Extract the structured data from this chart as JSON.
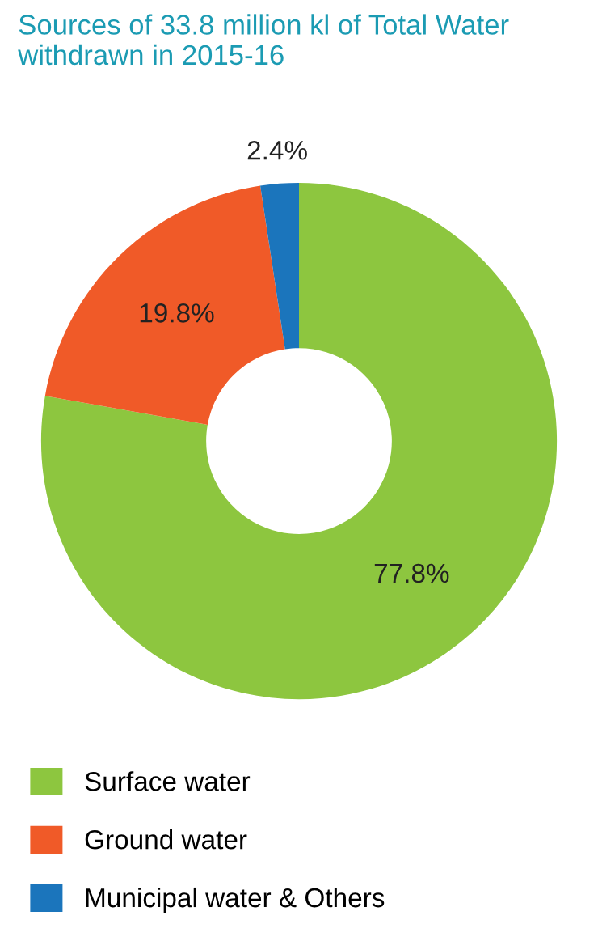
{
  "chart_data": {
    "type": "donut",
    "title": "Sources of 33.8 million kl of Total Water withdrawn in 2015-16",
    "categories": [
      "Surface water",
      "Ground water",
      "Municipal water & Others"
    ],
    "values": [
      77.8,
      19.8,
      2.4
    ],
    "colors": [
      "#8dc63f",
      "#f05a28",
      "#1b75bc"
    ],
    "value_labels": [
      "77.8%",
      "19.8%",
      "2.4%"
    ],
    "legend": "bottom"
  }
}
